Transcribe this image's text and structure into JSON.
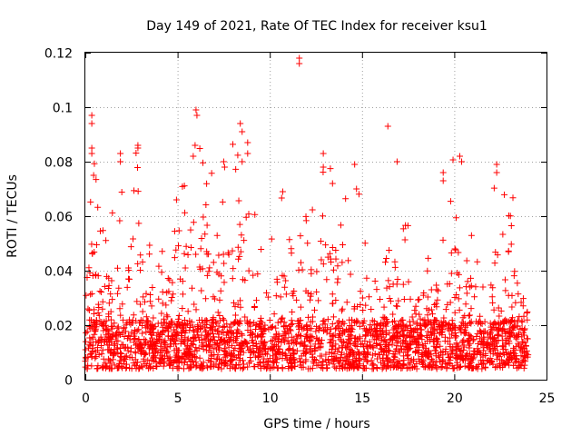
{
  "chart_data": {
    "type": "scatter",
    "title": "Day 149 of 2021, Rate Of TEC Index for receiver ksu1",
    "xlabel": "GPS time / hours",
    "ylabel": "ROTI / TECUs",
    "xlim": [
      0,
      25
    ],
    "ylim": [
      0,
      0.12
    ],
    "xticks": [
      0,
      5,
      10,
      15,
      20,
      25
    ],
    "xtick_labels": [
      "0",
      "5",
      "10",
      "15",
      "20",
      "25"
    ],
    "yticks": [
      0,
      0.02,
      0.04,
      0.06,
      0.08,
      0.1,
      0.12
    ],
    "ytick_labels": [
      "0",
      "0.02",
      "0.04",
      "0.06",
      "0.08",
      "0.1",
      "0.12"
    ],
    "grid": true,
    "marker": "+",
    "color": "#ff0000",
    "series": [
      {
        "name": "ROTI",
        "x_range": [
          0,
          24
        ],
        "baseline_range": [
          0.004,
          0.022
        ],
        "activity_profile": [
          {
            "x": 0.0,
            "y": 0.045
          },
          {
            "x": 0.3,
            "y": 0.085
          },
          {
            "x": 1.0,
            "y": 0.055
          },
          {
            "x": 1.8,
            "y": 0.065
          },
          {
            "x": 2.8,
            "y": 0.085
          },
          {
            "x": 3.3,
            "y": 0.06
          },
          {
            "x": 4.0,
            "y": 0.045
          },
          {
            "x": 5.0,
            "y": 0.065
          },
          {
            "x": 6.0,
            "y": 0.095
          },
          {
            "x": 7.5,
            "y": 0.08
          },
          {
            "x": 8.5,
            "y": 0.09
          },
          {
            "x": 9.5,
            "y": 0.05
          },
          {
            "x": 10.5,
            "y": 0.065
          },
          {
            "x": 11.5,
            "y": 0.05
          },
          {
            "x": 12.5,
            "y": 0.08
          },
          {
            "x": 13.5,
            "y": 0.075
          },
          {
            "x": 14.6,
            "y": 0.078
          },
          {
            "x": 15.5,
            "y": 0.03
          },
          {
            "x": 16.5,
            "y": 0.045
          },
          {
            "x": 17.5,
            "y": 0.055
          },
          {
            "x": 18.5,
            "y": 0.04
          },
          {
            "x": 19.5,
            "y": 0.075
          },
          {
            "x": 20.4,
            "y": 0.08
          },
          {
            "x": 21.5,
            "y": 0.035
          },
          {
            "x": 22.3,
            "y": 0.075
          },
          {
            "x": 23.2,
            "y": 0.065
          },
          {
            "x": 24.0,
            "y": 0.02
          }
        ],
        "outliers": [
          {
            "x": 0.35,
            "y": 0.097
          },
          {
            "x": 0.35,
            "y": 0.094
          },
          {
            "x": 0.35,
            "y": 0.085
          },
          {
            "x": 0.35,
            "y": 0.083
          },
          {
            "x": 0.45,
            "y": 0.075
          },
          {
            "x": 1.9,
            "y": 0.083
          },
          {
            "x": 1.9,
            "y": 0.08
          },
          {
            "x": 2.85,
            "y": 0.086
          },
          {
            "x": 2.85,
            "y": 0.085
          },
          {
            "x": 5.85,
            "y": 0.082
          },
          {
            "x": 5.95,
            "y": 0.086
          },
          {
            "x": 6.0,
            "y": 0.099
          },
          {
            "x": 6.05,
            "y": 0.097
          },
          {
            "x": 8.4,
            "y": 0.094
          },
          {
            "x": 8.5,
            "y": 0.091
          },
          {
            "x": 8.5,
            "y": 0.08
          },
          {
            "x": 8.8,
            "y": 0.087
          },
          {
            "x": 8.8,
            "y": 0.083
          },
          {
            "x": 11.6,
            "y": 0.118
          },
          {
            "x": 11.6,
            "y": 0.116
          },
          {
            "x": 12.9,
            "y": 0.083
          },
          {
            "x": 12.9,
            "y": 0.078
          },
          {
            "x": 14.6,
            "y": 0.079
          },
          {
            "x": 16.4,
            "y": 0.093
          },
          {
            "x": 16.9,
            "y": 0.08
          },
          {
            "x": 19.4,
            "y": 0.076
          },
          {
            "x": 19.4,
            "y": 0.073
          },
          {
            "x": 20.3,
            "y": 0.082
          },
          {
            "x": 20.4,
            "y": 0.08
          },
          {
            "x": 22.3,
            "y": 0.079
          },
          {
            "x": 22.3,
            "y": 0.076
          },
          {
            "x": 7.5,
            "y": 0.08
          },
          {
            "x": 7.55,
            "y": 0.078
          },
          {
            "x": 10.7,
            "y": 0.069
          },
          {
            "x": 13.4,
            "y": 0.072
          },
          {
            "x": 14.7,
            "y": 0.07
          }
        ]
      }
    ]
  }
}
